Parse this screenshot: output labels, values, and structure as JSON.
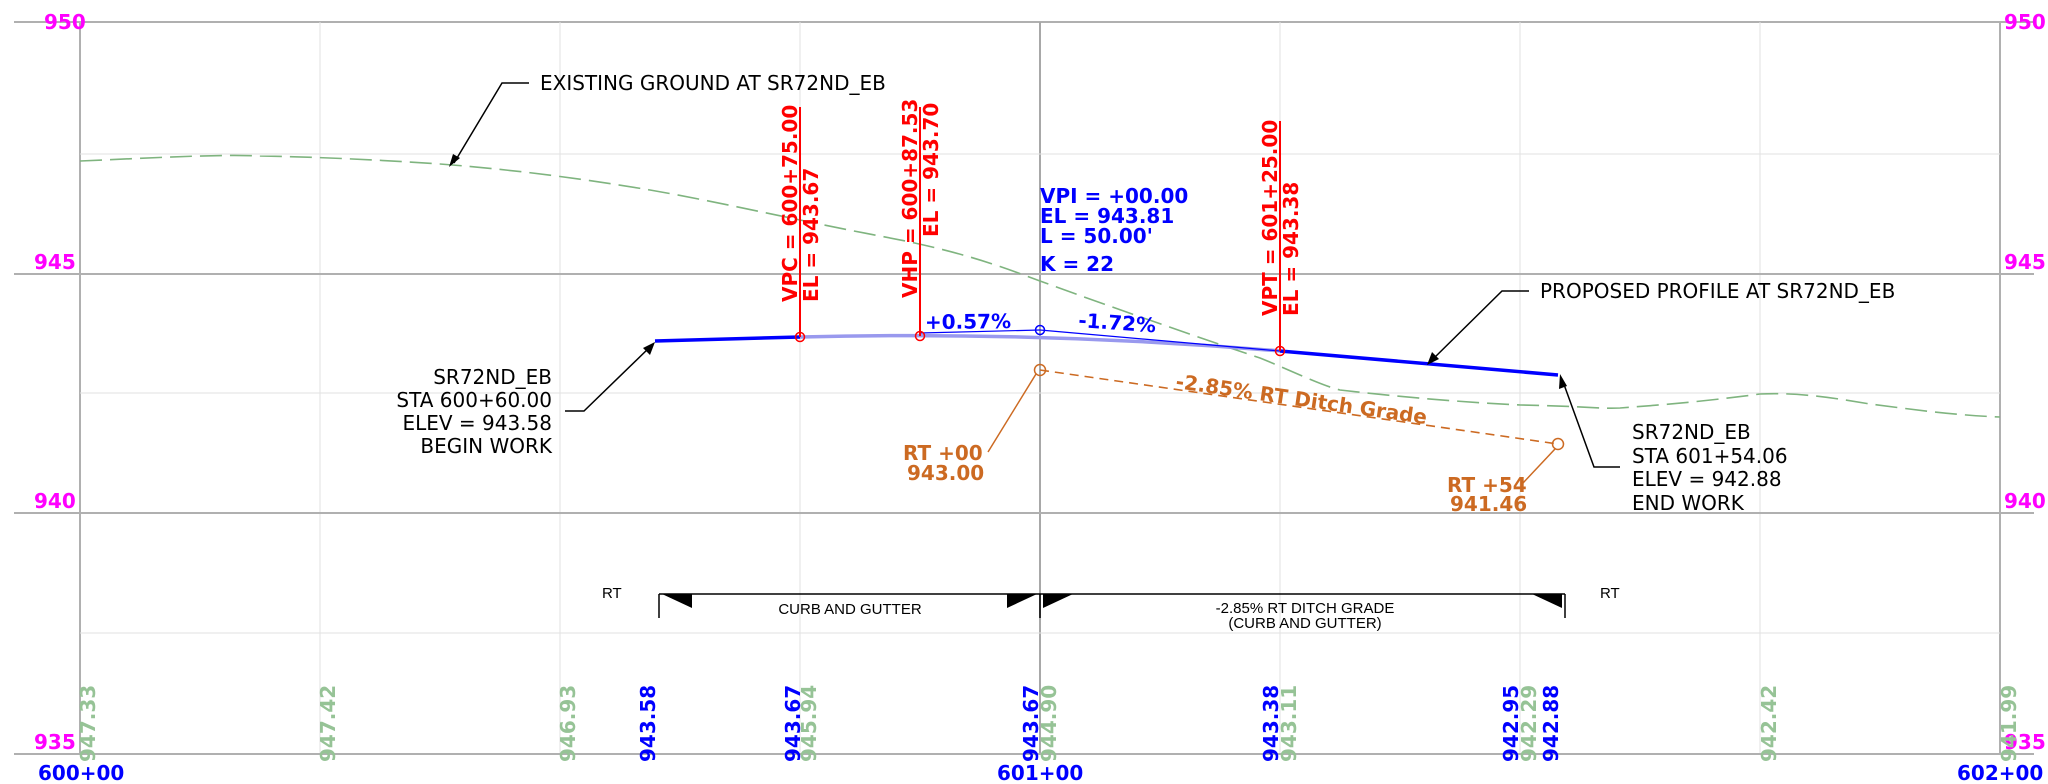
{
  "elevation_labels": {
    "e950": "950",
    "e945": "945",
    "e940": "940",
    "e935": "935"
  },
  "station_labels": {
    "s600": "600+00",
    "s601": "601+00",
    "s602": "602+00"
  },
  "existing_ground_label": "EXISTING GROUND AT SR72ND_EB",
  "proposed_profile_label": "PROPOSED PROFILE AT SR72ND_EB",
  "begin_work": {
    "line1": "SR72ND_EB",
    "line2": "STA 600+60.00",
    "line3": "ELEV = 943.58",
    "line4": "BEGIN WORK"
  },
  "end_work": {
    "line1": "SR72ND_EB",
    "line2": "STA 601+54.06",
    "line3": "ELEV = 942.88",
    "line4": "END WORK"
  },
  "vpc": {
    "sta": "VPC = 600+75.00",
    "el": "EL = 943.67"
  },
  "vhp": {
    "sta": "VHP = 600+87.53",
    "el": "EL = 943.70"
  },
  "vpt": {
    "sta": "VPT = 601+25.00",
    "el": "EL = 943.38"
  },
  "vpi": {
    "line1": "VPI = +00.00",
    "line2": "EL = 943.81",
    "line3": "L = 50.00'",
    "line4": "K = 22"
  },
  "grades": {
    "g1": "+0.57%",
    "g2": "-1.72%"
  },
  "ditch": {
    "grade_label": "-2.85% RT Ditch Grade",
    "start_line1": "RT +00",
    "start_line2": "943.00",
    "end_line1": "RT +54",
    "end_line2": "941.46"
  },
  "band": {
    "rt_left": "RT",
    "rt_right": "RT",
    "curb": "CURB AND GUTTER",
    "ditch_line1": "-2.85% RT DITCH GRADE",
    "ditch_line2": "(CURB AND GUTTER)"
  },
  "bottom_blue": [
    "943.58",
    "943.67",
    "943.67",
    "943.38",
    "942.95",
    "942.88"
  ],
  "bottom_green": [
    "947.33",
    "947.42",
    "946.93",
    "945.94",
    "944.90",
    "943.11",
    "942.29",
    "942.42",
    "941.99"
  ],
  "colors": {
    "elevation_text": "#ff00ff",
    "proposed": "#0000ff",
    "vertical_curve": "#9999ee",
    "existing_ground": "#7fb47f",
    "ditch": "#cc6a22",
    "curve_points": "#ff0000"
  }
}
